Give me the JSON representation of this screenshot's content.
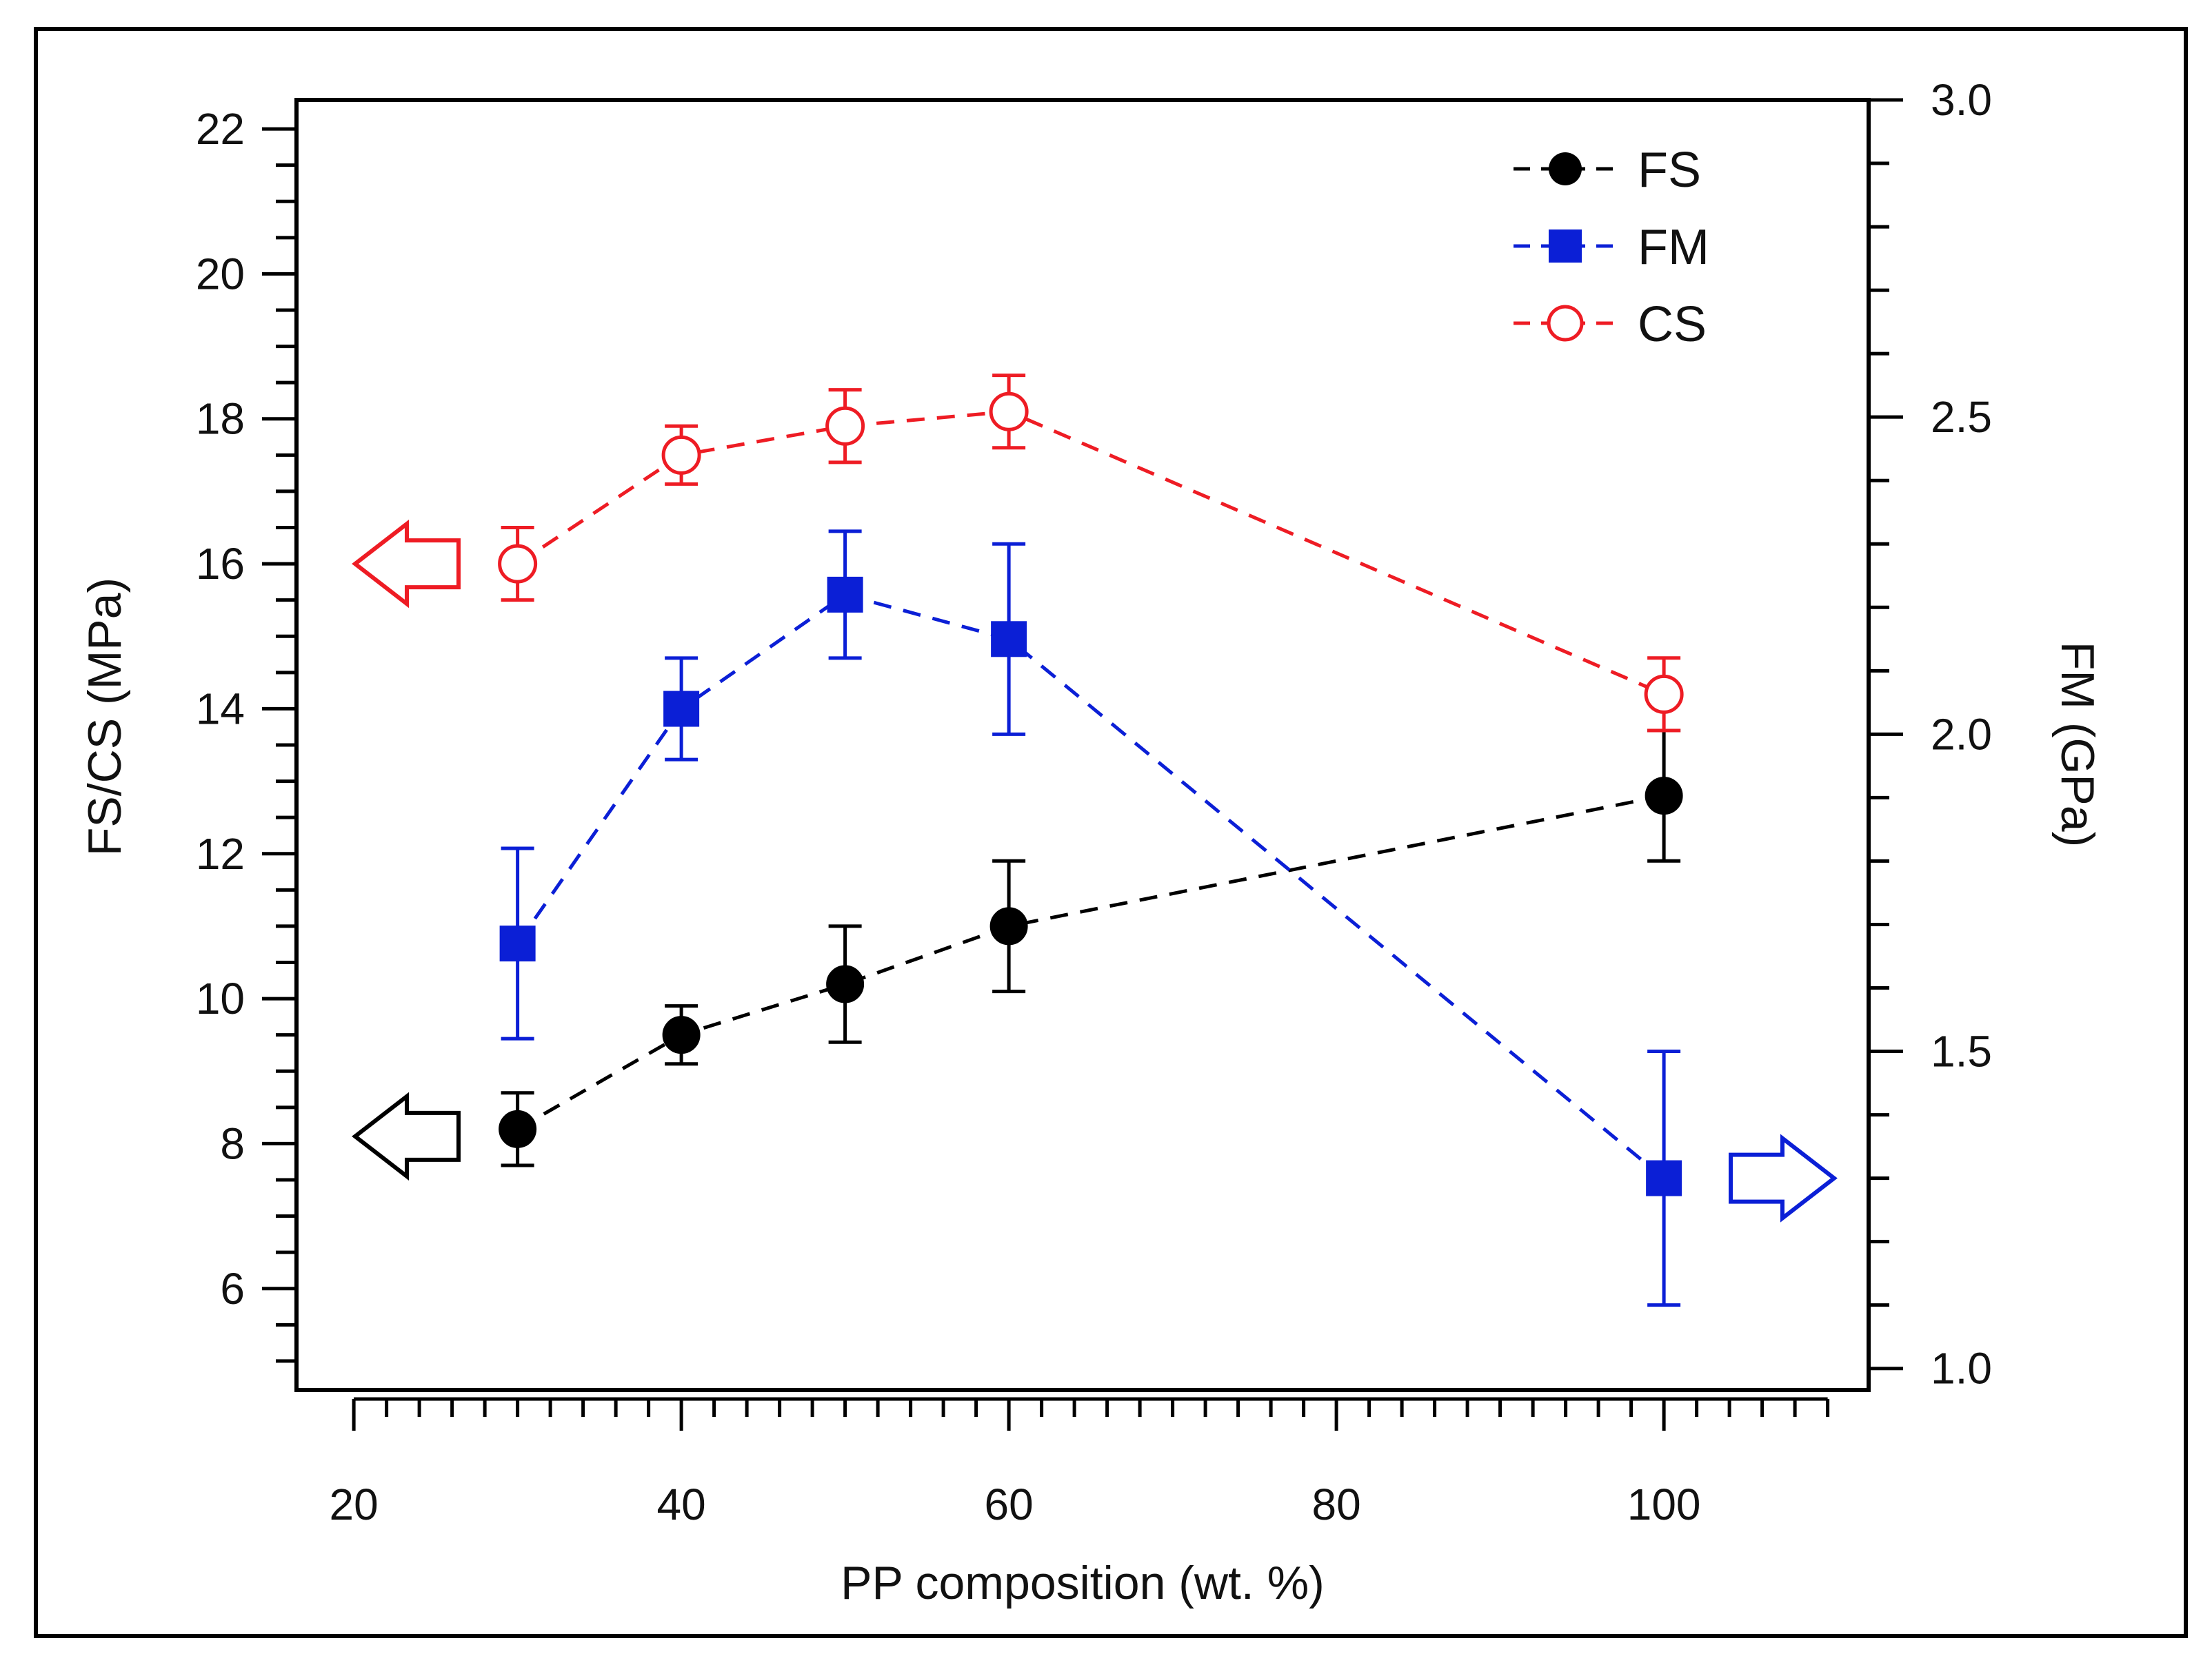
{
  "chart_data": {
    "type": "line",
    "title": "",
    "xlabel": "PP composition (wt. %)",
    "ylabel_left": "FS/CS (MPa)",
    "ylabel_right": "FM (GPa)",
    "xlim": [
      16.5,
      112.5
    ],
    "ylim_left": [
      4.6,
      22.4
    ],
    "ylim_right": [
      0.966,
      3.0
    ],
    "x_ticks": [
      20,
      40,
      60,
      80,
      100
    ],
    "x_tick_labels": [
      "20",
      "40",
      "60",
      "80",
      "100"
    ],
    "y_left_ticks": [
      6,
      8,
      10,
      12,
      14,
      16,
      18,
      20,
      22
    ],
    "y_left_tick_labels": [
      "6",
      "8",
      "10",
      "12",
      "14",
      "16",
      "18",
      "20",
      "22"
    ],
    "y_right_ticks": [
      1.0,
      1.5,
      2.0,
      2.5,
      3.0
    ],
    "y_right_tick_labels": [
      "1.0",
      "1.5",
      "2.0",
      "2.5",
      "3.0"
    ],
    "grid": false,
    "legend_position": "top-right",
    "series": [
      {
        "name": "FS",
        "axis": "left",
        "color": "#000000",
        "marker": "filled-circle",
        "x": [
          30,
          40,
          50,
          60,
          100
        ],
        "y": [
          8.2,
          9.5,
          10.2,
          11.0,
          12.8
        ],
        "err": [
          0.5,
          0.4,
          0.8,
          0.9,
          0.9
        ]
      },
      {
        "name": "FM",
        "axis": "right",
        "color": "#0b1fd6",
        "marker": "filled-square",
        "x": [
          30,
          40,
          50,
          60,
          100
        ],
        "y": [
          1.67,
          2.04,
          2.22,
          2.15,
          1.3
        ],
        "err": [
          0.15,
          0.08,
          0.1,
          0.15,
          0.2
        ]
      },
      {
        "name": "CS",
        "axis": "left",
        "color": "#ee1c24",
        "marker": "open-circle",
        "x": [
          30,
          40,
          50,
          60,
          100
        ],
        "y": [
          16.0,
          17.5,
          17.9,
          18.1,
          14.2
        ],
        "err": [
          0.5,
          0.4,
          0.5,
          0.5,
          0.5
        ]
      }
    ],
    "annotations": [
      {
        "name": "cs-left-axis-arrow",
        "direction": "left",
        "color": "#ee1c24",
        "points_to": "left axis",
        "y": 16.0
      },
      {
        "name": "fs-left-axis-arrow",
        "direction": "left",
        "color": "#000000",
        "points_to": "left axis",
        "y": 8.1
      },
      {
        "name": "fm-right-axis-arrow",
        "direction": "right",
        "color": "#0b1fd6",
        "points_to": "right axis",
        "y": 1.3
      }
    ]
  }
}
